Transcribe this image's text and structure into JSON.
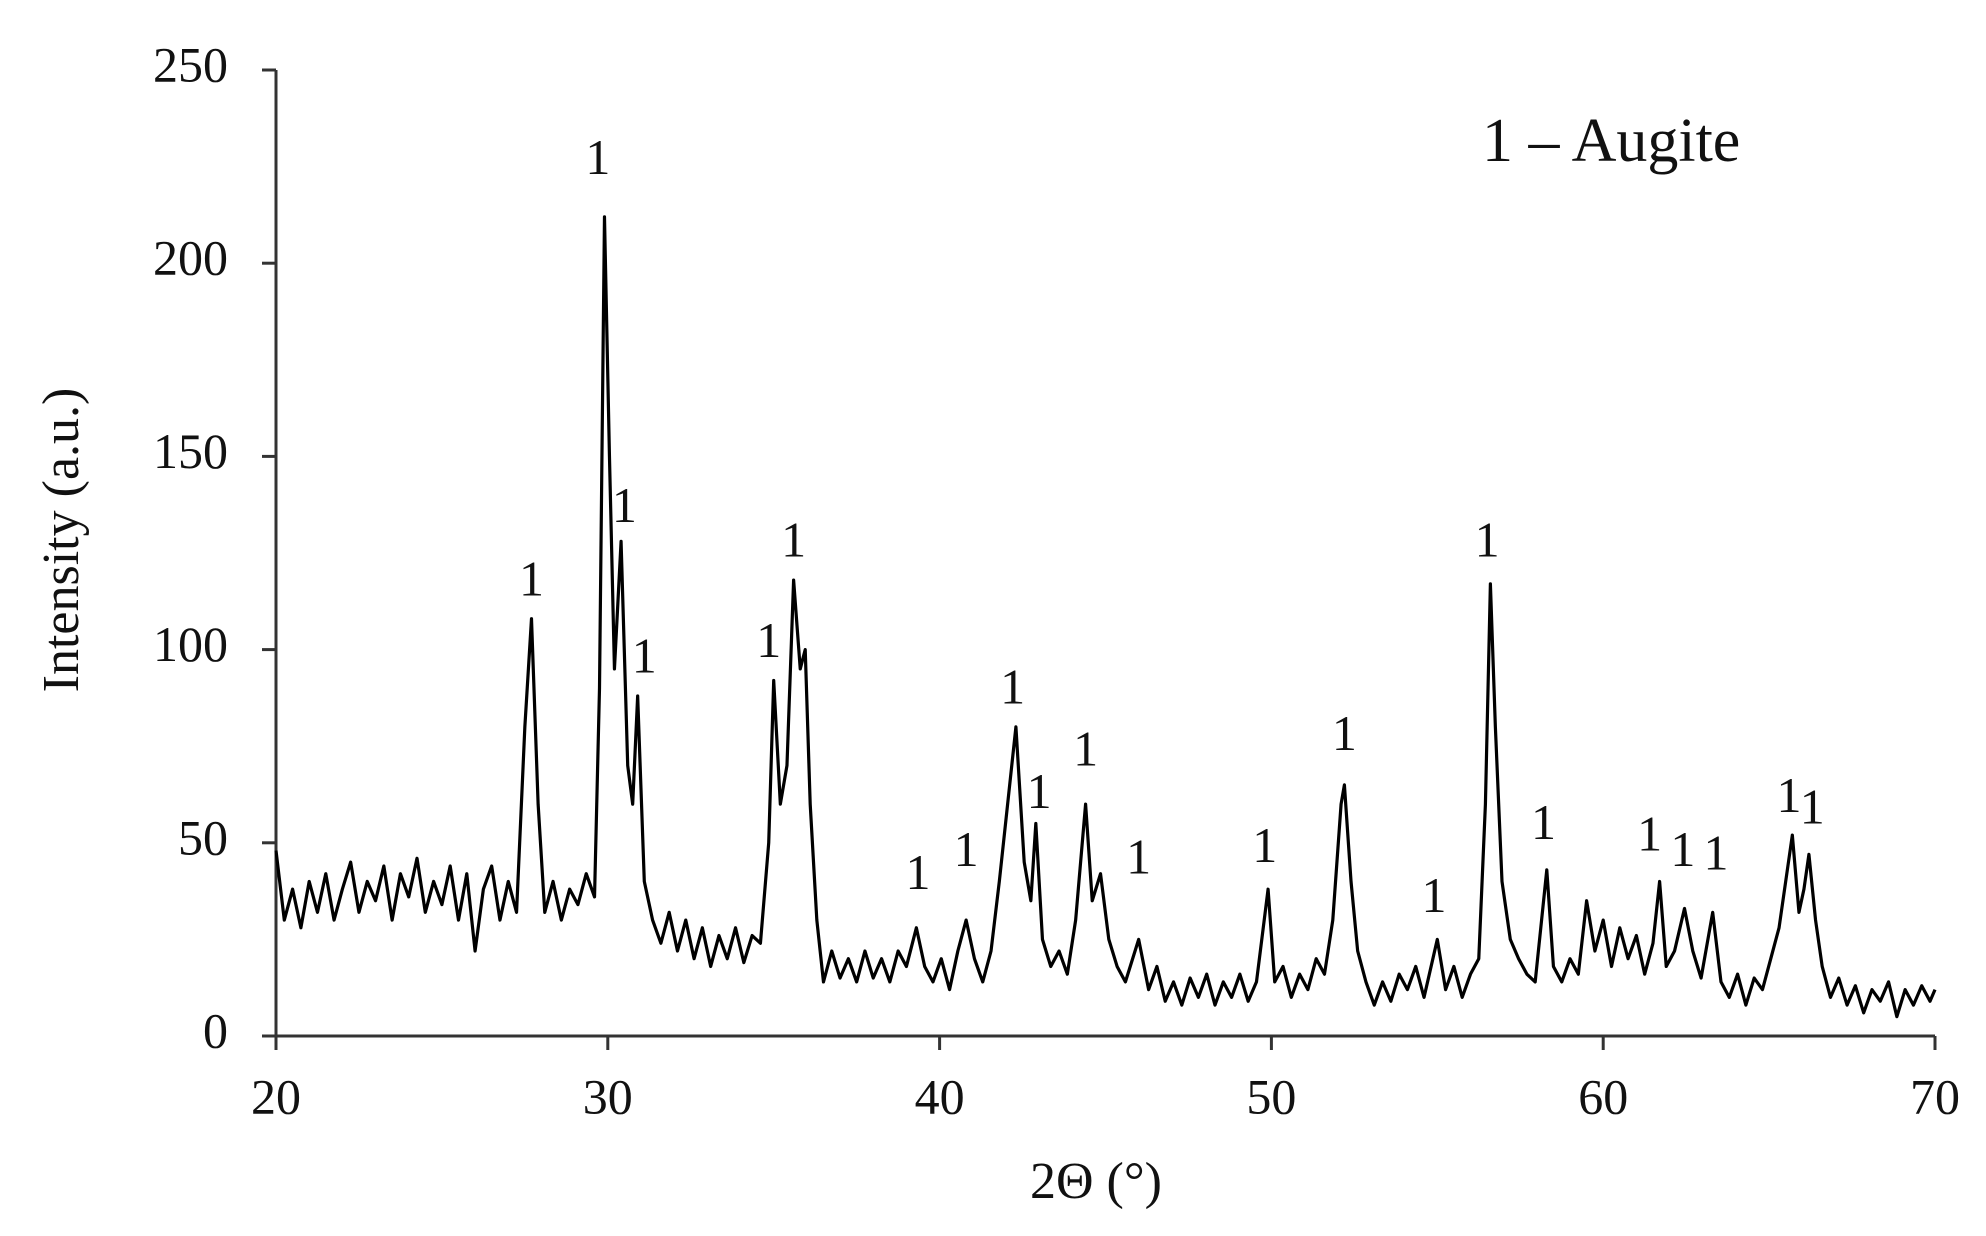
{
  "chart_data": {
    "type": "line",
    "xlabel": "2Θ (°)",
    "ylabel": "Intensity (a.u.)",
    "annotation": "1 – Augite",
    "color": "#000000",
    "xlim": [
      20,
      70
    ],
    "xticks": [
      20,
      30,
      40,
      50,
      60,
      70
    ],
    "ylim": [
      0,
      250
    ],
    "yticks": [
      0,
      50,
      100,
      150,
      200,
      250
    ],
    "grid": false,
    "x": [
      20,
      20.25,
      20.5,
      20.75,
      21,
      21.25,
      21.5,
      21.75,
      22,
      22.25,
      22.5,
      22.75,
      23,
      23.25,
      23.5,
      23.75,
      24,
      24.25,
      24.5,
      24.75,
      25,
      25.25,
      25.5,
      25.75,
      26,
      26.25,
      26.5,
      26.75,
      27,
      27.25,
      27.5,
      27.7,
      27.9,
      28.1,
      28.35,
      28.6,
      28.85,
      29.1,
      29.35,
      29.6,
      29.75,
      29.9,
      30.05,
      30.2,
      30.4,
      30.6,
      30.75,
      30.9,
      31.1,
      31.35,
      31.6,
      31.85,
      32.1,
      32.35,
      32.6,
      32.85,
      33.1,
      33.35,
      33.6,
      33.85,
      34.1,
      34.35,
      34.6,
      34.85,
      35.0,
      35.2,
      35.4,
      35.6,
      35.8,
      35.95,
      36.1,
      36.3,
      36.5,
      36.75,
      37,
      37.25,
      37.5,
      37.75,
      38,
      38.25,
      38.5,
      38.75,
      39,
      39.3,
      39.55,
      39.8,
      40.05,
      40.3,
      40.55,
      40.8,
      41.05,
      41.3,
      41.55,
      41.8,
      42.05,
      42.3,
      42.55,
      42.75,
      42.9,
      43.1,
      43.35,
      43.6,
      43.85,
      44.1,
      44.4,
      44.6,
      44.85,
      45.1,
      45.35,
      45.6,
      46.0,
      46.3,
      46.55,
      46.8,
      47.05,
      47.3,
      47.55,
      47.8,
      48.05,
      48.3,
      48.55,
      48.8,
      49.05,
      49.3,
      49.55,
      49.9,
      50.1,
      50.35,
      50.6,
      50.85,
      51.1,
      51.35,
      51.6,
      51.85,
      52.1,
      52.2,
      52.4,
      52.6,
      52.85,
      53.1,
      53.35,
      53.6,
      53.85,
      54.1,
      54.35,
      54.6,
      55.0,
      55.25,
      55.5,
      55.75,
      56.0,
      56.25,
      56.45,
      56.6,
      56.75,
      56.95,
      57.2,
      57.45,
      57.7,
      57.95,
      58.3,
      58.5,
      58.75,
      59.0,
      59.25,
      59.5,
      59.75,
      60.0,
      60.25,
      60.5,
      60.75,
      61.0,
      61.25,
      61.5,
      61.7,
      61.9,
      62.15,
      62.45,
      62.7,
      62.95,
      63.3,
      63.55,
      63.8,
      64.05,
      64.3,
      64.55,
      64.8,
      65.05,
      65.3,
      65.5,
      65.7,
      65.9,
      66.05,
      66.2,
      66.4,
      66.6,
      66.85,
      67.1,
      67.35,
      67.6,
      67.85,
      68.1,
      68.35,
      68.6,
      68.85,
      69.1,
      69.35,
      69.6,
      69.85,
      70
    ],
    "values": [
      48,
      30,
      38,
      28,
      40,
      32,
      42,
      30,
      38,
      45,
      32,
      40,
      35,
      44,
      30,
      42,
      36,
      46,
      32,
      40,
      34,
      44,
      30,
      42,
      22,
      38,
      44,
      30,
      40,
      32,
      80,
      108,
      60,
      32,
      40,
      30,
      38,
      34,
      42,
      36,
      90,
      212,
      150,
      95,
      128,
      70,
      60,
      88,
      40,
      30,
      24,
      32,
      22,
      30,
      20,
      28,
      18,
      26,
      20,
      28,
      19,
      26,
      24,
      50,
      92,
      60,
      70,
      118,
      95,
      100,
      60,
      30,
      14,
      22,
      15,
      20,
      14,
      22,
      15,
      20,
      14,
      22,
      18,
      28,
      18,
      14,
      20,
      12,
      22,
      30,
      20,
      14,
      22,
      40,
      60,
      80,
      45,
      35,
      55,
      25,
      18,
      22,
      16,
      30,
      60,
      35,
      42,
      25,
      18,
      14,
      25,
      12,
      18,
      9,
      14,
      8,
      15,
      10,
      16,
      8,
      14,
      10,
      16,
      9,
      14,
      38,
      14,
      18,
      10,
      16,
      12,
      20,
      16,
      30,
      60,
      65,
      40,
      22,
      14,
      8,
      14,
      9,
      16,
      12,
      18,
      10,
      25,
      12,
      18,
      10,
      16,
      20,
      60,
      117,
      80,
      40,
      25,
      20,
      16,
      14,
      43,
      18,
      14,
      20,
      16,
      35,
      22,
      30,
      18,
      28,
      20,
      26,
      16,
      24,
      40,
      18,
      22,
      33,
      22,
      15,
      32,
      14,
      10,
      16,
      8,
      15,
      12,
      20,
      28,
      40,
      52,
      32,
      38,
      47,
      30,
      18,
      10,
      15,
      8,
      13,
      6,
      12,
      9,
      14,
      5,
      12,
      8,
      13,
      9,
      12
    ],
    "peak_labels": [
      {
        "text": "1",
        "x": 27.7,
        "y": 117
      },
      {
        "text": "1",
        "x": 29.7,
        "y": 226
      },
      {
        "text": "1",
        "x": 30.5,
        "y": 136
      },
      {
        "text": "1",
        "x": 31.1,
        "y": 97
      },
      {
        "text": "1",
        "x": 34.85,
        "y": 101
      },
      {
        "text": "1",
        "x": 35.6,
        "y": 127
      },
      {
        "text": "1",
        "x": 39.35,
        "y": 41
      },
      {
        "text": "1",
        "x": 40.8,
        "y": 47
      },
      {
        "text": "1",
        "x": 42.2,
        "y": 89
      },
      {
        "text": "1",
        "x": 43.0,
        "y": 62
      },
      {
        "text": "1",
        "x": 44.4,
        "y": 73
      },
      {
        "text": "1",
        "x": 46.0,
        "y": 45
      },
      {
        "text": "1",
        "x": 49.8,
        "y": 48
      },
      {
        "text": "1",
        "x": 52.2,
        "y": 77
      },
      {
        "text": "1",
        "x": 54.9,
        "y": 35
      },
      {
        "text": "1",
        "x": 56.5,
        "y": 127
      },
      {
        "text": "1",
        "x": 58.2,
        "y": 54
      },
      {
        "text": "1",
        "x": 61.4,
        "y": 51
      },
      {
        "text": "1",
        "x": 62.4,
        "y": 47
      },
      {
        "text": "1",
        "x": 63.4,
        "y": 46
      },
      {
        "text": "1",
        "x": 65.6,
        "y": 61
      },
      {
        "text": "1",
        "x": 66.3,
        "y": 58
      }
    ]
  }
}
